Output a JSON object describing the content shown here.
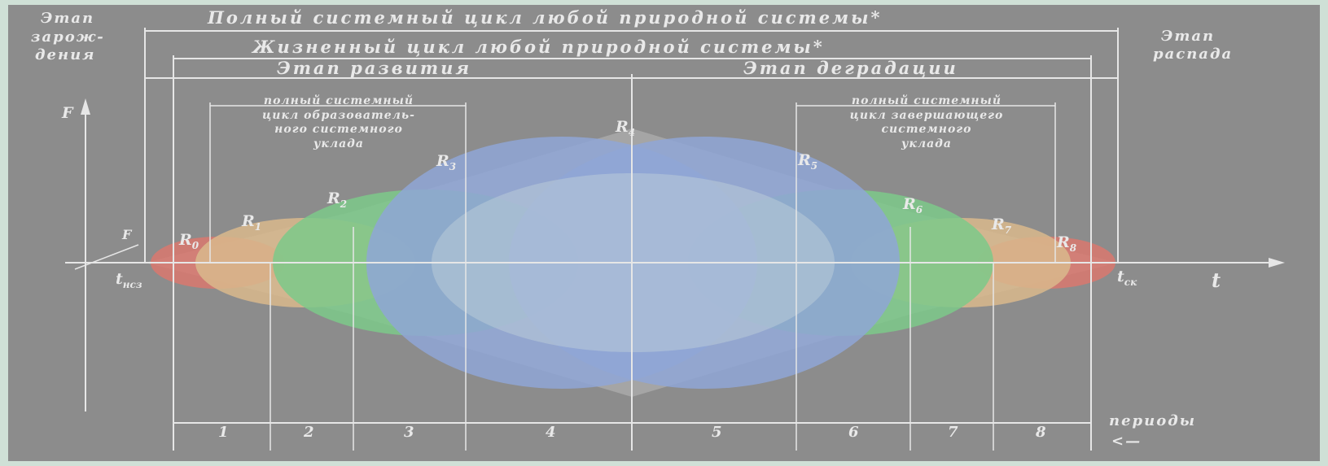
{
  "titles": {
    "full_cycle": "Полный системный цикл любой природной системы*",
    "life_cycle": "Жизненный цикл любой природной системы*",
    "development": "Этап развития",
    "degradation": "Этап деградации",
    "birth_l1": "Этап",
    "birth_l2": "зарож-",
    "birth_l3": "дения",
    "decay_l1": "Этап",
    "decay_l2": "распада"
  },
  "brackets": {
    "left_l1": "полный системный",
    "left_l2": "цикл образователь-",
    "left_l3": "ного системного",
    "left_l4": "уклада",
    "right_l1": "полный системный",
    "right_l2": "цикл завершающего",
    "right_l3": "системного",
    "right_l4": "уклада"
  },
  "axes": {
    "y": "F",
    "f_small": "F",
    "x": "t",
    "t_start": "t",
    "t_start_sub": "нсз",
    "t_end": "t",
    "t_end_sub": "ск",
    "periods_label": "периоды",
    "arrow": "<—"
  },
  "regimes": [
    {
      "letter": "R",
      "sub": "0"
    },
    {
      "letter": "R",
      "sub": "1"
    },
    {
      "letter": "R",
      "sub": "2"
    },
    {
      "letter": "R",
      "sub": "3"
    },
    {
      "letter": "R",
      "sub": "4"
    },
    {
      "letter": "R",
      "sub": "5"
    },
    {
      "letter": "R",
      "sub": "6"
    },
    {
      "letter": "R",
      "sub": "7"
    },
    {
      "letter": "R",
      "sub": "8"
    }
  ],
  "periods": [
    "1",
    "2",
    "3",
    "4",
    "5",
    "6",
    "7",
    "8"
  ],
  "colors": {
    "background": "#8c8c8c",
    "frame": "#cfe0d6",
    "lines": "#e6e6e6",
    "red": "#d9786f",
    "orange": "#d9b98c",
    "green": "#7cc98a",
    "blue": "#8fa6d6"
  }
}
